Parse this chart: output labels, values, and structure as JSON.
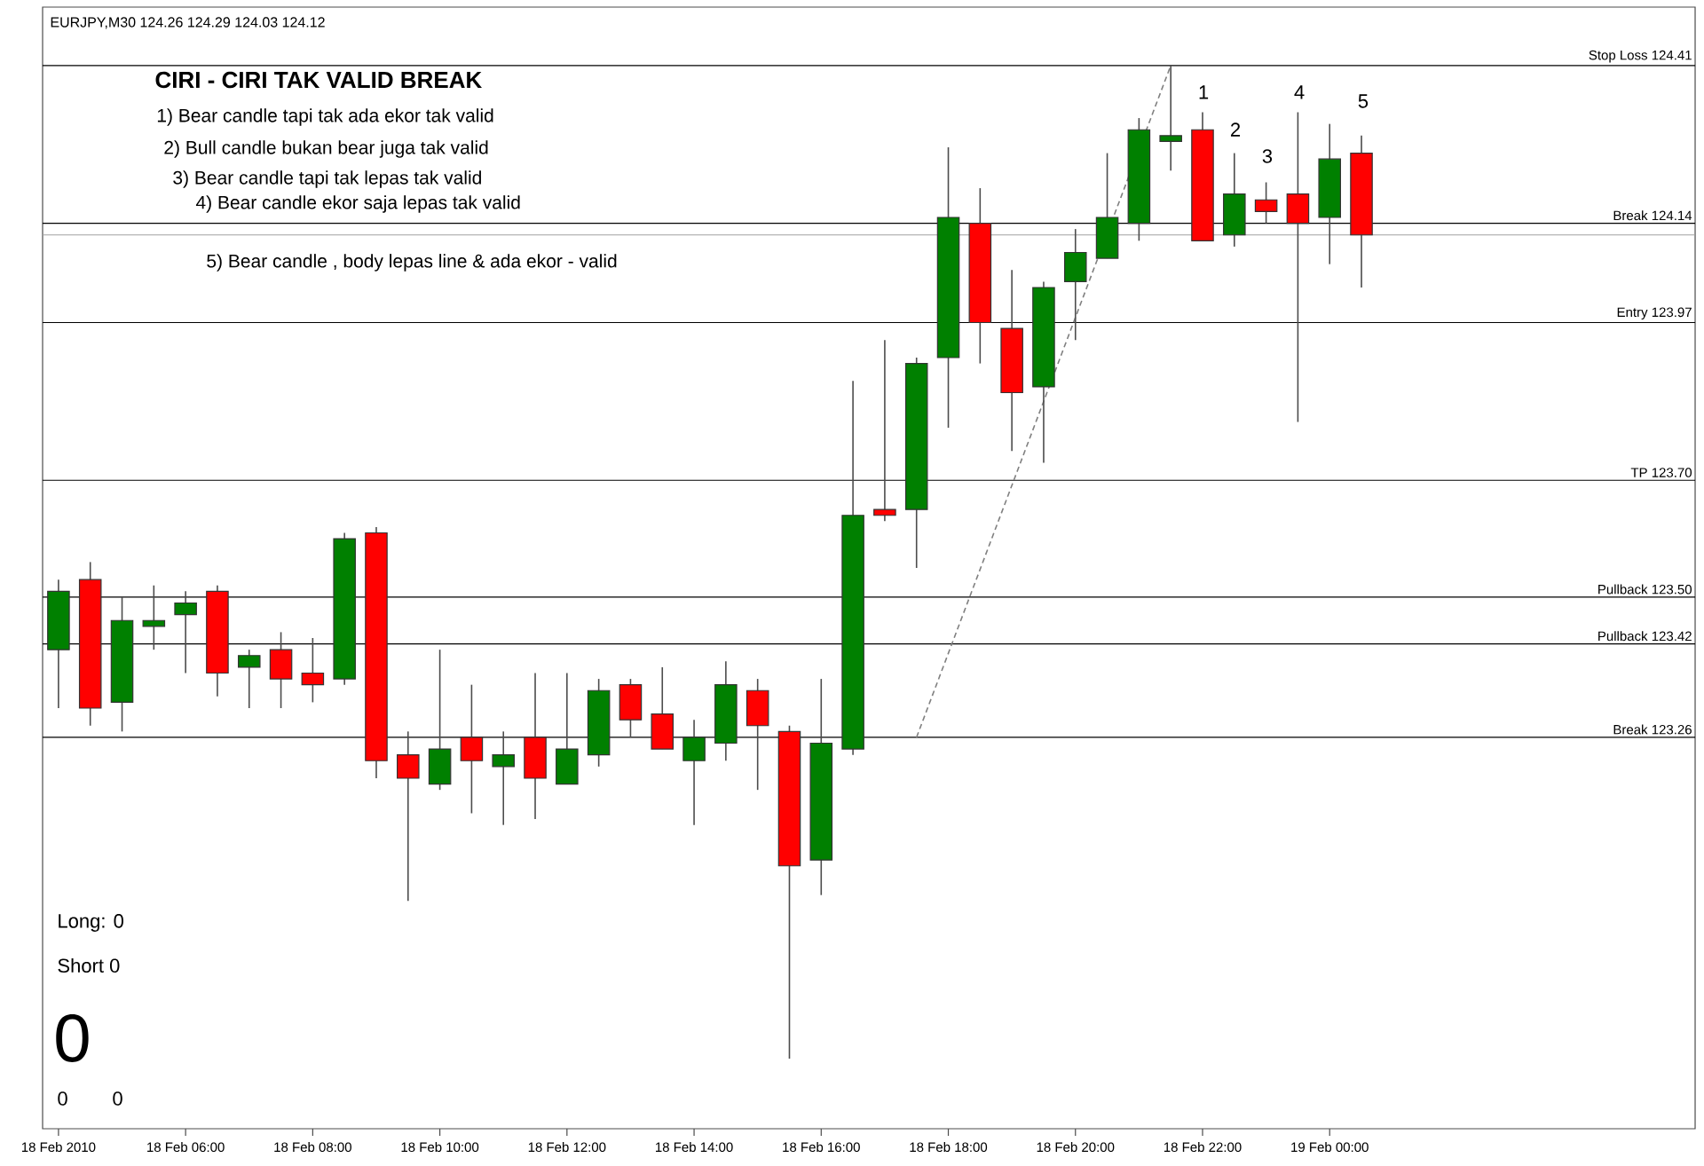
{
  "chart_data": {
    "type": "candlestick",
    "title": "CIRI - CIRI TAK VALID BREAK",
    "categories": [
      "18 Feb 2010",
      null,
      null,
      null,
      "18 Feb 06:00",
      null,
      null,
      null,
      "18 Feb 08:00",
      null,
      null,
      null,
      "18 Feb 10:00",
      null,
      null,
      null,
      "18 Feb 12:00",
      null,
      null,
      null,
      "18 Feb 14:00",
      null,
      null,
      null,
      "18 Feb 16:00",
      null,
      null,
      null,
      "18 Feb 18:00",
      null,
      null,
      null,
      "18 Feb 20:00",
      null,
      null,
      null,
      "18 Feb 22:00",
      null,
      null,
      null,
      "19 Feb 00:00",
      null,
      null,
      null,
      null,
      null,
      null,
      null,
      null,
      null,
      null,
      null
    ],
    "ohlc": [
      [
        123.41,
        123.53,
        123.31,
        123.51
      ],
      [
        123.53,
        123.56,
        123.28,
        123.31
      ],
      [
        123.32,
        123.5,
        123.27,
        123.46
      ],
      [
        123.45,
        123.52,
        123.41,
        123.46
      ],
      [
        123.47,
        123.51,
        123.37,
        123.49
      ],
      [
        123.51,
        123.52,
        123.33,
        123.37
      ],
      [
        123.38,
        123.41,
        123.31,
        123.4
      ],
      [
        123.41,
        123.44,
        123.31,
        123.36
      ],
      [
        123.37,
        123.43,
        123.32,
        123.35
      ],
      [
        123.36,
        123.61,
        123.35,
        123.6
      ],
      [
        123.61,
        123.62,
        123.19,
        123.22
      ],
      [
        123.23,
        123.27,
        122.98,
        123.19
      ],
      [
        123.18,
        123.41,
        123.17,
        123.24
      ],
      [
        123.26,
        123.35,
        123.13,
        123.22
      ],
      [
        123.21,
        123.27,
        123.11,
        123.23
      ],
      [
        123.26,
        123.37,
        123.12,
        123.19
      ],
      [
        123.18,
        123.37,
        123.18,
        123.24
      ],
      [
        123.23,
        123.36,
        123.21,
        123.34
      ],
      [
        123.35,
        123.36,
        123.26,
        123.29
      ],
      [
        123.3,
        123.38,
        123.24,
        123.24
      ],
      [
        123.22,
        123.29,
        123.11,
        123.26
      ],
      [
        123.25,
        123.39,
        123.22,
        123.35
      ],
      [
        123.34,
        123.36,
        123.17,
        123.28
      ],
      [
        123.27,
        123.28,
        122.71,
        123.04
      ],
      [
        123.05,
        123.36,
        122.99,
        123.25
      ],
      [
        123.24,
        123.87,
        123.23,
        123.64
      ],
      [
        123.65,
        123.94,
        123.63,
        123.64
      ],
      [
        123.65,
        123.91,
        123.55,
        123.9
      ],
      [
        123.91,
        124.27,
        123.79,
        124.15
      ],
      [
        124.14,
        124.2,
        123.9,
        123.97
      ],
      [
        123.96,
        124.06,
        123.75,
        123.85
      ],
      [
        123.86,
        124.04,
        123.73,
        124.03
      ],
      [
        124.04,
        124.13,
        123.94,
        124.09
      ],
      [
        124.08,
        124.26,
        124.08,
        124.15
      ],
      [
        124.14,
        124.32,
        124.11,
        124.3
      ],
      [
        124.28,
        124.41,
        124.23,
        124.29
      ],
      [
        124.3,
        124.33,
        124.11,
        124.11
      ],
      [
        124.12,
        124.26,
        124.1,
        124.19
      ],
      [
        124.18,
        124.21,
        124.14,
        124.16
      ],
      [
        124.19,
        124.33,
        123.8,
        124.14
      ],
      [
        124.15,
        124.31,
        124.07,
        124.25
      ],
      [
        124.26,
        124.29,
        124.03,
        124.12
      ],
      null,
      null,
      null,
      null,
      null,
      null,
      null,
      null,
      null,
      null
    ],
    "colors": [
      "#008000",
      "#ff0000",
      "#008000",
      "#008000",
      "#008000",
      "#ff0000",
      "#008000",
      "#ff0000",
      "#ff0000",
      "#008000",
      "#ff0000",
      "#ff0000",
      "#008000",
      "#ff0000",
      "#008000",
      "#ff0000",
      "#008000",
      "#008000",
      "#ff0000",
      "#ff0000",
      "#008000",
      "#008000",
      "#ff0000",
      "#ff0000",
      "#008000",
      "#008000",
      "#ff0000",
      "#008000",
      "#008000",
      "#ff0000",
      "#ff0000",
      "#008000",
      "#008000",
      "#008000",
      "#008000",
      "#008000",
      "#ff0000",
      "#008000",
      "#ff0000",
      "#ff0000",
      "#008000",
      "#ff0000",
      null,
      null,
      null,
      null,
      null,
      null,
      null,
      null,
      null,
      null
    ],
    "series": [
      {
        "type": "line",
        "values": [
          null,
          null,
          null,
          null,
          null,
          null,
          null,
          null,
          null,
          null,
          null,
          null,
          null,
          null,
          null,
          null,
          null,
          null,
          null,
          null,
          null,
          null,
          null,
          null,
          null,
          null,
          null,
          123.26,
          null,
          null,
          null,
          null,
          null,
          null,
          null,
          124.41,
          null,
          null,
          null,
          null,
          null,
          null,
          null,
          null,
          null,
          null,
          null,
          null,
          null,
          null,
          null,
          null
        ],
        "color": "#808080",
        "line_style": "dashed"
      }
    ],
    "ylim": [
      122.59,
      124.51
    ],
    "tick_labels": "x",
    "ref_lines": [
      {
        "axis": "y",
        "value": 124.41,
        "label": "Stop Loss  124.41",
        "color": "#000000"
      },
      {
        "axis": "y",
        "value": 124.14,
        "label": "Break 124.14",
        "color": "#000000"
      },
      {
        "axis": "y",
        "value": 124.12,
        "color": "#a0a0a0"
      },
      {
        "axis": "y",
        "value": 123.97,
        "label": "Entry 123.97",
        "color": "#000000"
      },
      {
        "axis": "y",
        "value": 123.7,
        "label": "TP  123.70",
        "color": "#000000"
      },
      {
        "axis": "y",
        "value": 123.5,
        "label": "Pullback 123.50",
        "color": "#000000"
      },
      {
        "axis": "y",
        "value": 123.42,
        "label": "Pullback 123.42",
        "color": "#000000"
      },
      {
        "axis": "y",
        "value": 123.26,
        "label": "Break 123.26",
        "color": "#000000"
      }
    ],
    "annotations": [
      "EURJPY,M30  124.26 124.29 124.03 124.12",
      "1) Bear candle tapi tak ada ekor tak valid",
      "2) Bull candle bukan bear juga tak valid",
      "3) Bear candle tapi tak lepas tak valid",
      "4) Bear candle ekor saja lepas tak valid",
      "5) Bear candle , body lepas line & ada ekor - valid",
      "Long:  0",
      "Short  0",
      "0",
      "0",
      "0",
      "1",
      "2",
      "3",
      "4",
      "5"
    ]
  }
}
